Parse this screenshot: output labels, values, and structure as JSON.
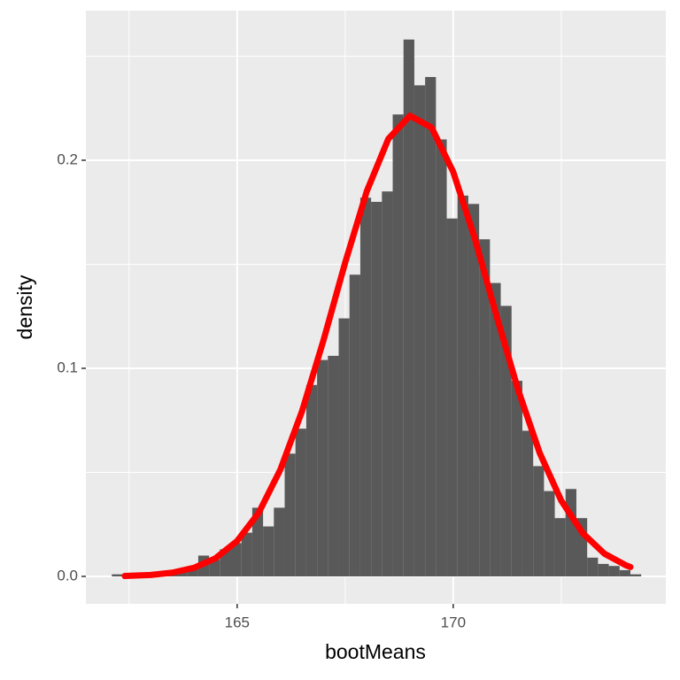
{
  "chart_data": {
    "type": "histogram",
    "x_label": "bootMeans",
    "y_label": "density",
    "bins": [
      162.1,
      162.35,
      162.6,
      162.85,
      163.1,
      163.35,
      163.6,
      163.85,
      164.1,
      164.35,
      164.6,
      164.85,
      165.1,
      165.35,
      165.6,
      165.85,
      166.1,
      166.35,
      166.6,
      166.85,
      167.1,
      167.35,
      167.6,
      167.85,
      168.1,
      168.35,
      168.6,
      168.85,
      169.1,
      169.35,
      169.6,
      169.85,
      170.1,
      170.35,
      170.6,
      170.85,
      171.1,
      171.35,
      171.6,
      171.85,
      172.1,
      172.35,
      172.6,
      172.85,
      173.1,
      173.35,
      173.6,
      173.85,
      174.1,
      174.35
    ],
    "values": [
      0.001,
      0,
      0,
      0.001,
      0.001,
      0.002,
      0.003,
      0.005,
      0.01,
      0.008,
      0.013,
      0.016,
      0.021,
      0.033,
      0.024,
      0.033,
      0.059,
      0.071,
      0.092,
      0.104,
      0.106,
      0.124,
      0.145,
      0.182,
      0.18,
      0.185,
      0.222,
      0.258,
      0.236,
      0.24,
      0.21,
      0.172,
      0.183,
      0.179,
      0.162,
      0.141,
      0.13,
      0.094,
      0.07,
      0.053,
      0.041,
      0.028,
      0.042,
      0.028,
      0.009,
      0.006,
      0.005,
      0.003,
      0.001
    ],
    "color": "#595959",
    "curve": {
      "type": "line",
      "color": "#ff0000",
      "x": [
        162.4,
        163,
        163.5,
        164,
        164.5,
        165,
        165.5,
        166,
        166.5,
        167,
        167.5,
        168,
        168.5,
        169,
        169.5,
        170,
        170.5,
        171,
        171.5,
        172,
        172.5,
        173,
        173.5,
        174,
        174.1
      ],
      "values": [
        0.0002,
        0.0007,
        0.0018,
        0.0041,
        0.0087,
        0.017,
        0.0306,
        0.0513,
        0.0793,
        0.1136,
        0.1508,
        0.1851,
        0.2103,
        0.2214,
        0.2157,
        0.1944,
        0.1624,
        0.1254,
        0.0898,
        0.0594,
        0.0364,
        0.0207,
        0.0109,
        0.0053,
        0.0045
      ]
    },
    "xlim": [
      161.5,
      174.92
    ],
    "ylim": [
      -0.0132,
      0.2719
    ],
    "xticks": [
      165,
      170
    ],
    "yticks": [
      {
        "value": 0,
        "label": "0.0"
      },
      {
        "value": 0.1,
        "label": "0.1"
      },
      {
        "value": 0.2,
        "label": "0.2"
      }
    ],
    "xminor": [
      162.5,
      167.5,
      172.5
    ],
    "yminor": [
      0.05,
      0.15,
      0.25
    ],
    "grid": true
  }
}
